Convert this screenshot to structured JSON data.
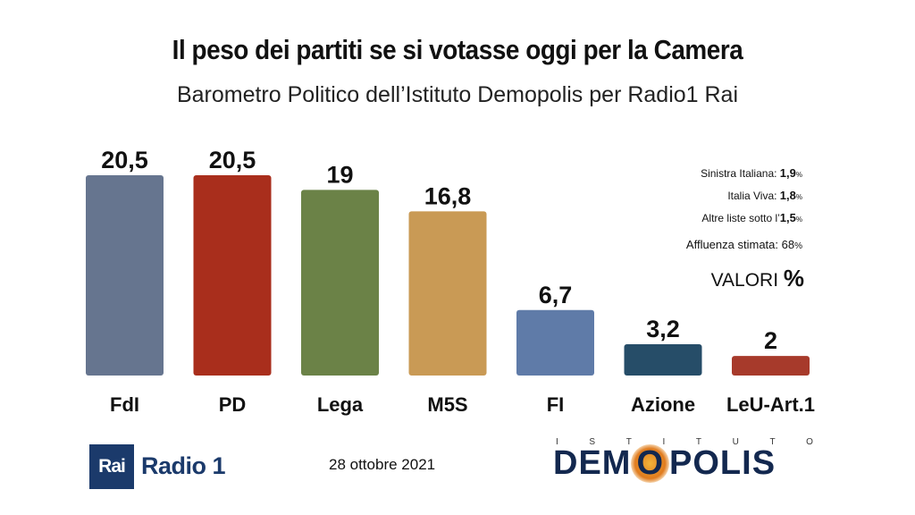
{
  "header": {
    "title": "Il peso dei partiti se si votasse oggi per la Camera",
    "subtitle": "Barometro Politico dell’Istituto Demopolis per Radio1 Rai"
  },
  "chart_data": {
    "type": "bar",
    "categories": [
      "FdI",
      "PD",
      "Lega",
      "M5S",
      "FI",
      "Azione",
      "LeU-Art.1"
    ],
    "values": [
      20.5,
      20.5,
      19,
      16.8,
      6.7,
      3.2,
      2
    ],
    "value_labels": [
      "20,5",
      "20,5",
      "19",
      "16,8",
      "6,7",
      "3,2",
      "2"
    ],
    "colors": [
      "#66758f",
      "#a92e1c",
      "#6b8247",
      "#c99a55",
      "#5f7ba8",
      "#264d68",
      "#a73a2b"
    ],
    "ylim": [
      0,
      20.5
    ],
    "grid": false,
    "legend": "none"
  },
  "notes": {
    "lines": [
      {
        "label": "Sinistra Italiana: ",
        "value": "1,9",
        "unit": "%"
      },
      {
        "label": "Italia Viva: ",
        "value": "1,8",
        "unit": "%"
      },
      {
        "label": "Altre liste sotto l’",
        "value": "1,5",
        "unit": "%"
      }
    ],
    "affluenza_label": "Affluenza stimata: ",
    "affluenza_value": "68",
    "affluenza_unit": "%"
  },
  "valori": {
    "label": "VALORI ",
    "symbol": "%"
  },
  "footer": {
    "rai": "Rai",
    "radio": "Radio 1",
    "date": "28 ottobre 2021",
    "demopolis_top": [
      "I",
      "S",
      "T",
      "I",
      "T",
      "U",
      "T",
      "O"
    ],
    "demopolis_pre": "DEM",
    "demopolis_o": "O",
    "demopolis_post": "POLIS"
  }
}
